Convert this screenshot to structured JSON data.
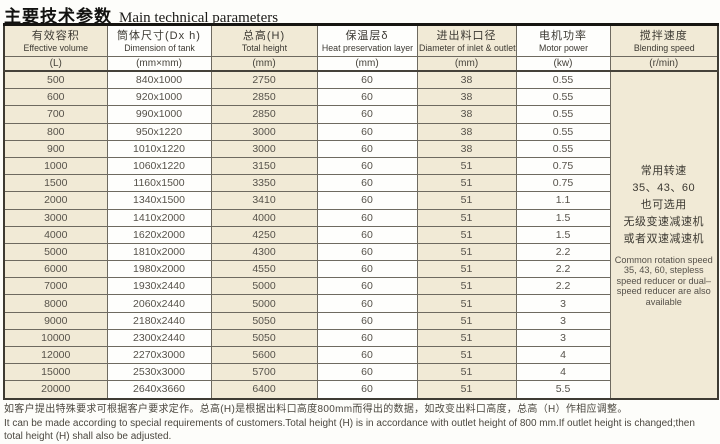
{
  "title": {
    "zh": "主要技术参数",
    "en": "Main technical parameters"
  },
  "table": {
    "columns": [
      {
        "key": "volume",
        "zh": "有效容积",
        "en": "Effective volume",
        "unit": "(L)"
      },
      {
        "key": "dimension",
        "zh": "筒体尺寸(Dx h)",
        "en": "Dimension of tank",
        "unit": "(mm×mm)"
      },
      {
        "key": "height",
        "zh": "总高(H)",
        "en": "Total height",
        "unit": "(mm)"
      },
      {
        "key": "insulation",
        "zh": "保温层δ",
        "en": "Heat preservation layer",
        "unit": "(mm)"
      },
      {
        "key": "diameter",
        "zh": "进出料口径",
        "en": "Diameter of inlet & outlet",
        "unit": "(mm)"
      },
      {
        "key": "power",
        "zh": "电机功率",
        "en": "Motor power",
        "unit": "(kw)"
      },
      {
        "key": "speed",
        "zh": "搅拌速度",
        "en": "Blending speed",
        "unit": "(r/min)"
      }
    ],
    "rows": [
      [
        "500",
        "840x1000",
        "2750",
        "60",
        "38",
        "0.55"
      ],
      [
        "600",
        "920x1000",
        "2850",
        "60",
        "38",
        "0.55"
      ],
      [
        "700",
        "990x1000",
        "2850",
        "60",
        "38",
        "0.55"
      ],
      [
        "800",
        "950x1220",
        "3000",
        "60",
        "38",
        "0.55"
      ],
      [
        "900",
        "1010x1220",
        "3000",
        "60",
        "38",
        "0.55"
      ],
      [
        "1000",
        "1060x1220",
        "3150",
        "60",
        "51",
        "0.75"
      ],
      [
        "1500",
        "1160x1500",
        "3350",
        "60",
        "51",
        "0.75"
      ],
      [
        "2000",
        "1340x1500",
        "3410",
        "60",
        "51",
        "1.1"
      ],
      [
        "3000",
        "1410x2000",
        "4000",
        "60",
        "51",
        "1.5"
      ],
      [
        "4000",
        "1620x2000",
        "4250",
        "60",
        "51",
        "1.5"
      ],
      [
        "5000",
        "1810x2000",
        "4300",
        "60",
        "51",
        "2.2"
      ],
      [
        "6000",
        "1980x2000",
        "4550",
        "60",
        "51",
        "2.2"
      ],
      [
        "7000",
        "1930x2440",
        "5000",
        "60",
        "51",
        "2.2"
      ],
      [
        "8000",
        "2060x2440",
        "5000",
        "60",
        "51",
        "3"
      ],
      [
        "9000",
        "2180x2440",
        "5050",
        "60",
        "51",
        "3"
      ],
      [
        "10000",
        "2300x2440",
        "5050",
        "60",
        "51",
        "3"
      ],
      [
        "12000",
        "2270x3000",
        "5600",
        "60",
        "51",
        "4"
      ],
      [
        "15000",
        "2530x3000",
        "5700",
        "60",
        "51",
        "4"
      ],
      [
        "20000",
        "2640x3660",
        "6400",
        "60",
        "51",
        "5.5"
      ]
    ],
    "speed_note": {
      "zh_lines": [
        "常用转速",
        "35、43、60",
        "也可选用",
        "无级变速减速机",
        "或者双速减速机"
      ],
      "en": "Common rotation speed 35, 43, 60, stepless speed reducer or dual–speed reducer are also available"
    }
  },
  "footer": {
    "zh": "如客户提出特殊要求可根据客户要求定作。总高(H)是根据出料口高度800mm而得出的数据，如改变出料口高度，总高（H）作相应调整。",
    "en": "It can be made according to special requirements of customers.Total height (H) is in accordance with outlet height of 800 mm.If outlet height is changed;then total height (H) shall also be adjusted."
  },
  "colors": {
    "cream": "#f1ead6",
    "white": "#fefefc",
    "border_dark": "#3e3b33",
    "border_light": "#6e6a60",
    "text": "#56524a"
  }
}
